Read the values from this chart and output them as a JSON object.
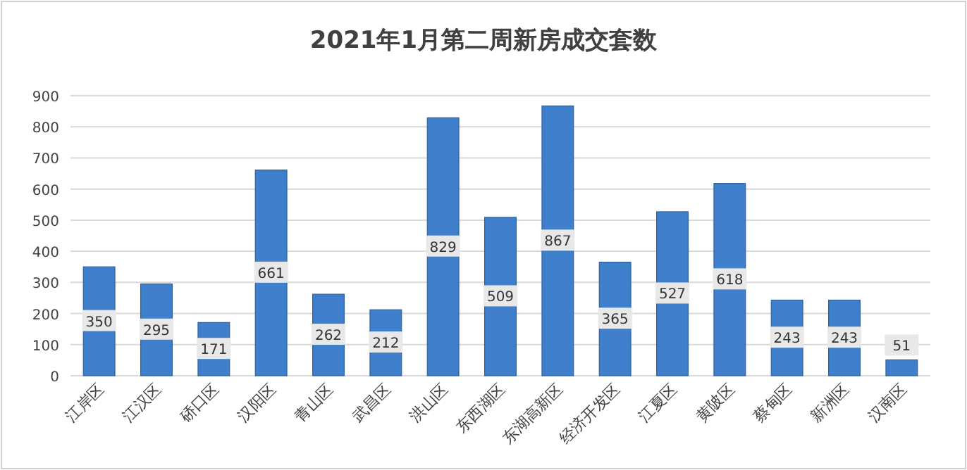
{
  "chart_data": {
    "type": "bar",
    "title": "2021年1月第二周新房成交套数",
    "categories": [
      "江岸区",
      "江汉区",
      "硚口区",
      "汉阳区",
      "青山区",
      "武昌区",
      "洪山区",
      "东西湖区",
      "东湖高新区",
      "经济开发区",
      "江夏区",
      "黄陂区",
      "蔡甸区",
      "新洲区",
      "汉南区"
    ],
    "values": [
      350,
      295,
      171,
      661,
      262,
      212,
      829,
      509,
      867,
      365,
      527,
      618,
      243,
      243,
      51
    ],
    "color": "#3f7fcc",
    "ylim": [
      0,
      900
    ],
    "yticks": [
      0,
      100,
      200,
      300,
      400,
      500,
      600,
      700,
      800,
      900
    ],
    "grid": "y",
    "data_labels": true
  }
}
